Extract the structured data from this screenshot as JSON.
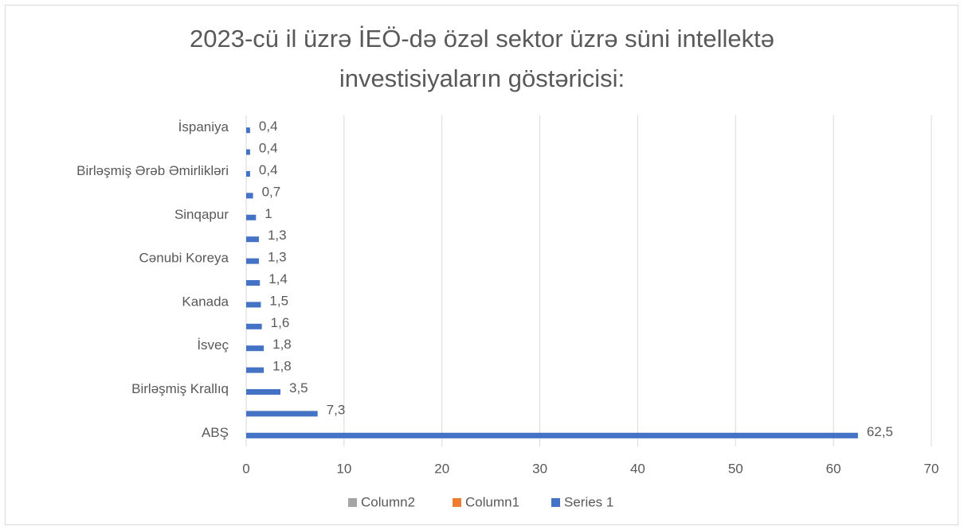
{
  "chart_data": {
    "type": "bar",
    "orientation": "horizontal",
    "title": "2023-cü il üzrə İEÖ-də özəl sektor üzrə süni intellektə investisiyaların göstəricisi:",
    "categories": [
      "ABŞ",
      null,
      "Birləşmiş Krallıq",
      null,
      "İsveç ",
      null,
      "Kanada",
      null,
      "Cənubi Koreya",
      null,
      "Sinqapur",
      null,
      "Birləşmiş Ərəb Əmirlikləri",
      null,
      "İspaniya"
    ],
    "series": [
      {
        "name": "Column2",
        "color": "#a5a5a5",
        "values": [
          null,
          null,
          null,
          null,
          null,
          null,
          null,
          null,
          null,
          null,
          null,
          null,
          null,
          null,
          null
        ]
      },
      {
        "name": "Column1",
        "color": "#ed7d31",
        "values": [
          null,
          null,
          null,
          null,
          null,
          null,
          null,
          null,
          null,
          null,
          null,
          null,
          null,
          null,
          null
        ]
      },
      {
        "name": "Series 1",
        "color": "#4472c4",
        "values": [
          62.5,
          7.3,
          3.5,
          1.8,
          1.8,
          1.6,
          1.5,
          1.4,
          1.3,
          1.3,
          1,
          0.7,
          0.4,
          0.4,
          0.4
        ],
        "value_labels": [
          "62,5",
          "7,3",
          "3,5",
          "1,8",
          "1,8",
          "1,6",
          "1,5",
          "1,4",
          "1,3",
          "1,3",
          "1",
          "0,7",
          "0,4",
          "0,4",
          "0,4"
        ]
      }
    ],
    "xlim": [
      0,
      70
    ],
    "xticks": [
      0,
      10,
      20,
      30,
      40,
      50,
      60,
      70
    ],
    "grid": true,
    "legend": "bottom"
  }
}
